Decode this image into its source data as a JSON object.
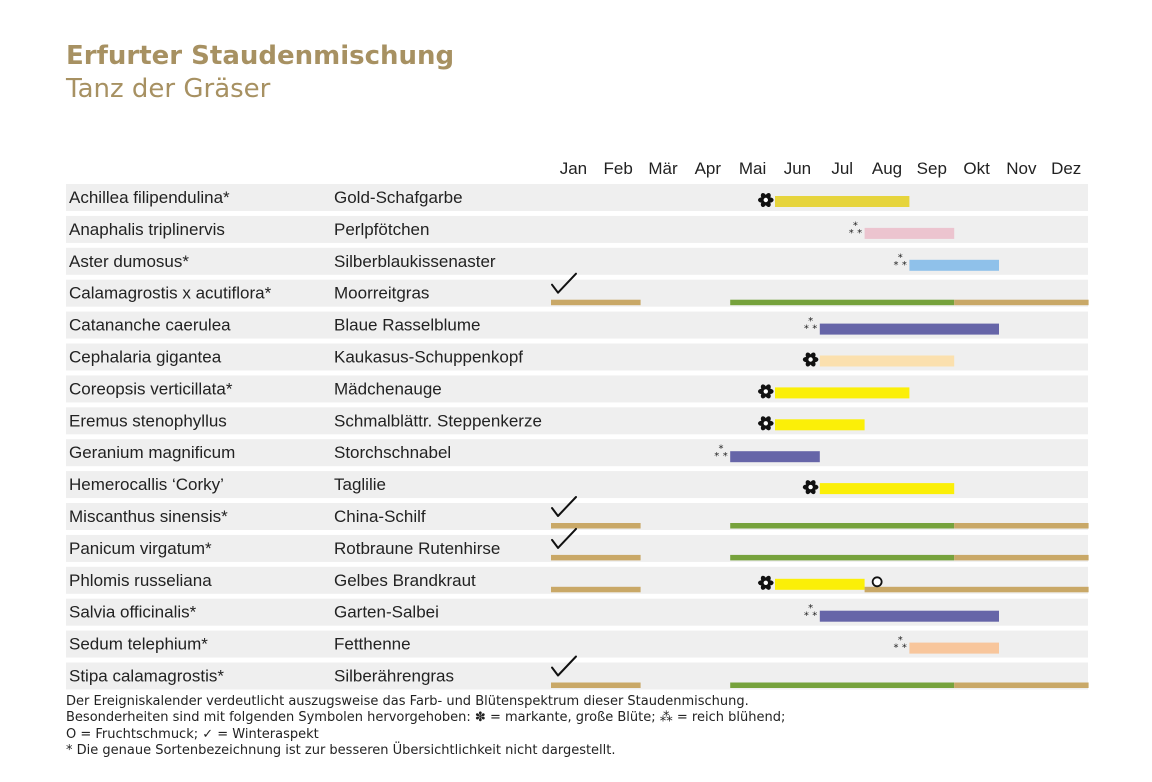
{
  "colors": {
    "title": "#a79162",
    "row_bg": "#efefef",
    "winter": "#c9a867",
    "foliage": "#76a23c",
    "yellow_dark": "#e6d43c",
    "yellow": "#fbef08",
    "pink": "#ecc4cf",
    "lightblue": "#8fc1ea",
    "violet": "#6665a8",
    "peach": "#fbe0ae",
    "salmon": "#f8c69c"
  },
  "header": {
    "title": "Erfurter Staudenmischung",
    "subtitle": "Tanz der Gräser"
  },
  "notes": {
    "line1": "Der Ereigniskalender verdeutlicht auszugsweise das Farb- und Blütenspektrum dieser Staudenmischung.",
    "line2": "Besonderheiten sind mit folgenden Symbolen hervorgehoben: ✽ = markante, große Blüte; ⁂ = reich blühend;",
    "line3": "O = Fruchtschmuck; ✓ = Winteraspekt",
    "line4": "* Die genaue Sortenbezeichnung ist zur besseren Übersichtlichkeit nicht dargestellt."
  },
  "chart_data": {
    "type": "timeline",
    "months": [
      "Jan",
      "Feb",
      "Mär",
      "Apr",
      "Mai",
      "Jun",
      "Jul",
      "Aug",
      "Sep",
      "Okt",
      "Nov",
      "Dez"
    ],
    "month_range": [
      1,
      13
    ],
    "rows": [
      {
        "latin": "Achillea filipendulina*",
        "german": "Gold-Schafgarbe",
        "bars": [
          {
            "start": 6.0,
            "end": 9.0,
            "color": "#e6d43c",
            "kind": "bloom"
          }
        ],
        "symbols": [
          {
            "type": "big",
            "at": 5.75
          }
        ]
      },
      {
        "latin": "Anaphalis triplinervis",
        "german": "Perlpfötchen",
        "bars": [
          {
            "start": 8.0,
            "end": 10.0,
            "color": "#ecc4cf",
            "kind": "bloom"
          }
        ],
        "symbols": [
          {
            "type": "rich",
            "at": 7.75
          }
        ]
      },
      {
        "latin": "Aster dumosus*",
        "german": "Silberblaukissenaster",
        "bars": [
          {
            "start": 9.0,
            "end": 11.0,
            "color": "#8fc1ea",
            "kind": "bloom"
          }
        ],
        "symbols": [
          {
            "type": "rich",
            "at": 8.75
          }
        ]
      },
      {
        "latin": "Calamagrostis x acutiflora*",
        "german": "Moorreitgras",
        "bars": [
          {
            "start": 1.0,
            "end": 3.0,
            "color": "#c9a867",
            "kind": "line"
          },
          {
            "start": 5.0,
            "end": 10.0,
            "color": "#76a23c",
            "kind": "line"
          },
          {
            "start": 10.0,
            "end": 13.0,
            "color": "#c9a867",
            "kind": "line"
          }
        ],
        "symbols": [
          {
            "type": "check",
            "at": 1.0
          }
        ]
      },
      {
        "latin": "Catananche caerulea",
        "german": "Blaue Rasselblume",
        "bars": [
          {
            "start": 7.0,
            "end": 11.0,
            "color": "#6665a8",
            "kind": "bloom"
          }
        ],
        "symbols": [
          {
            "type": "rich",
            "at": 6.75
          }
        ]
      },
      {
        "latin": "Cephalaria gigantea",
        "german": "Kaukasus-Schuppenkopf",
        "bars": [
          {
            "start": 7.0,
            "end": 10.0,
            "color": "#fbe0ae",
            "kind": "bloom"
          }
        ],
        "symbols": [
          {
            "type": "big",
            "at": 6.75
          }
        ]
      },
      {
        "latin": "Coreopsis verticillata*",
        "german": "Mädchenauge",
        "bars": [
          {
            "start": 6.0,
            "end": 9.0,
            "color": "#fbef08",
            "kind": "bloom"
          }
        ],
        "symbols": [
          {
            "type": "big",
            "at": 5.75
          }
        ]
      },
      {
        "latin": "Eremus stenophyllus",
        "german": "Schmalblättr. Steppenkerze",
        "bars": [
          {
            "start": 6.0,
            "end": 8.0,
            "color": "#fbef08",
            "kind": "bloom"
          }
        ],
        "symbols": [
          {
            "type": "big",
            "at": 5.75
          }
        ]
      },
      {
        "latin": "Geranium magnificum",
        "german": "Storchschnabel",
        "bars": [
          {
            "start": 5.0,
            "end": 7.0,
            "color": "#6665a8",
            "kind": "bloom"
          }
        ],
        "symbols": [
          {
            "type": "rich",
            "at": 4.75
          }
        ]
      },
      {
        "latin": "Hemerocallis ‘Corky’",
        "german": "Taglilie",
        "bars": [
          {
            "start": 7.0,
            "end": 10.0,
            "color": "#fbef08",
            "kind": "bloom"
          }
        ],
        "symbols": [
          {
            "type": "big",
            "at": 6.75
          }
        ]
      },
      {
        "latin": "Miscanthus sinensis*",
        "german": "China-Schilf",
        "bars": [
          {
            "start": 1.0,
            "end": 3.0,
            "color": "#c9a867",
            "kind": "line"
          },
          {
            "start": 5.0,
            "end": 10.0,
            "color": "#76a23c",
            "kind": "line"
          },
          {
            "start": 10.0,
            "end": 13.0,
            "color": "#c9a867",
            "kind": "line"
          }
        ],
        "symbols": [
          {
            "type": "check",
            "at": 1.0
          }
        ]
      },
      {
        "latin": "Panicum virgatum*",
        "german": "Rotbraune Rutenhirse",
        "bars": [
          {
            "start": 1.0,
            "end": 3.0,
            "color": "#c9a867",
            "kind": "line"
          },
          {
            "start": 5.0,
            "end": 10.0,
            "color": "#76a23c",
            "kind": "line"
          },
          {
            "start": 10.0,
            "end": 13.0,
            "color": "#c9a867",
            "kind": "line"
          }
        ],
        "symbols": [
          {
            "type": "check",
            "at": 1.0
          }
        ]
      },
      {
        "latin": "Phlomis russeliana",
        "german": "Gelbes Brandkraut",
        "bars": [
          {
            "start": 1.0,
            "end": 3.0,
            "color": "#c9a867",
            "kind": "line"
          },
          {
            "start": 6.0,
            "end": 8.0,
            "color": "#fbef08",
            "kind": "bloom"
          },
          {
            "start": 8.0,
            "end": 13.0,
            "color": "#c9a867",
            "kind": "line"
          }
        ],
        "symbols": [
          {
            "type": "big",
            "at": 5.75
          },
          {
            "type": "fruit",
            "at": 8.28
          }
        ]
      },
      {
        "latin": "Salvia officinalis*",
        "german": "Garten-Salbei",
        "bars": [
          {
            "start": 7.0,
            "end": 11.0,
            "color": "#6665a8",
            "kind": "bloom"
          }
        ],
        "symbols": [
          {
            "type": "rich",
            "at": 6.75
          }
        ]
      },
      {
        "latin": "Sedum telephium*",
        "german": "Fetthenne",
        "bars": [
          {
            "start": 9.0,
            "end": 11.0,
            "color": "#f8c69c",
            "kind": "bloom"
          }
        ],
        "symbols": [
          {
            "type": "rich",
            "at": 8.75
          }
        ]
      },
      {
        "latin": "Stipa calamagrostis*",
        "german": "Silberährengras",
        "bars": [
          {
            "start": 1.0,
            "end": 3.0,
            "color": "#c9a867",
            "kind": "line"
          },
          {
            "start": 5.0,
            "end": 10.0,
            "color": "#76a23c",
            "kind": "line"
          },
          {
            "start": 10.0,
            "end": 13.0,
            "color": "#c9a867",
            "kind": "line"
          }
        ],
        "symbols": [
          {
            "type": "check",
            "at": 1.0
          }
        ]
      }
    ]
  }
}
